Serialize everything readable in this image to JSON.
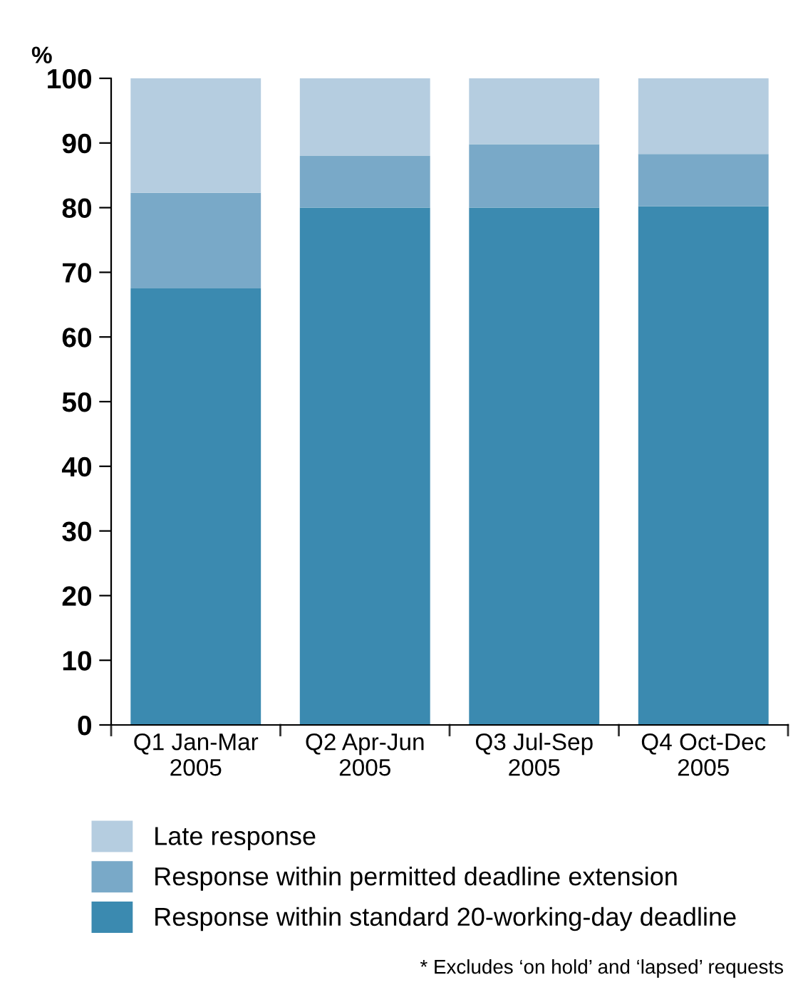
{
  "chart_data": {
    "type": "bar",
    "stacked": true,
    "ylabel": "%",
    "categories": [
      "Q1 Jan-Mar\n2005",
      "Q2 Apr-Jun\n2005",
      "Q3 Jul-Sep\n2005",
      "Q4 Oct-Dec\n2005"
    ],
    "series": [
      {
        "name": "Response within standard 20-working-day deadline",
        "color": "#3b8ab0",
        "values": [
          67.5,
          80,
          80,
          80.2
        ]
      },
      {
        "name": "Response within permitted deadline extension",
        "color": "#79a9c8",
        "values": [
          14.8,
          8,
          9.8,
          8.1
        ]
      },
      {
        "name": "Late response",
        "color": "#b5cde0",
        "values": [
          17.7,
          12,
          10.2,
          11.7
        ]
      }
    ],
    "ylim": [
      0,
      100
    ],
    "yticks": [
      0,
      10,
      20,
      30,
      40,
      50,
      60,
      70,
      80,
      90,
      100
    ],
    "grid": false,
    "legend": "bottom",
    "annotations": [
      "* Excludes ‘on hold’ and ‘lapsed’ requests"
    ]
  }
}
